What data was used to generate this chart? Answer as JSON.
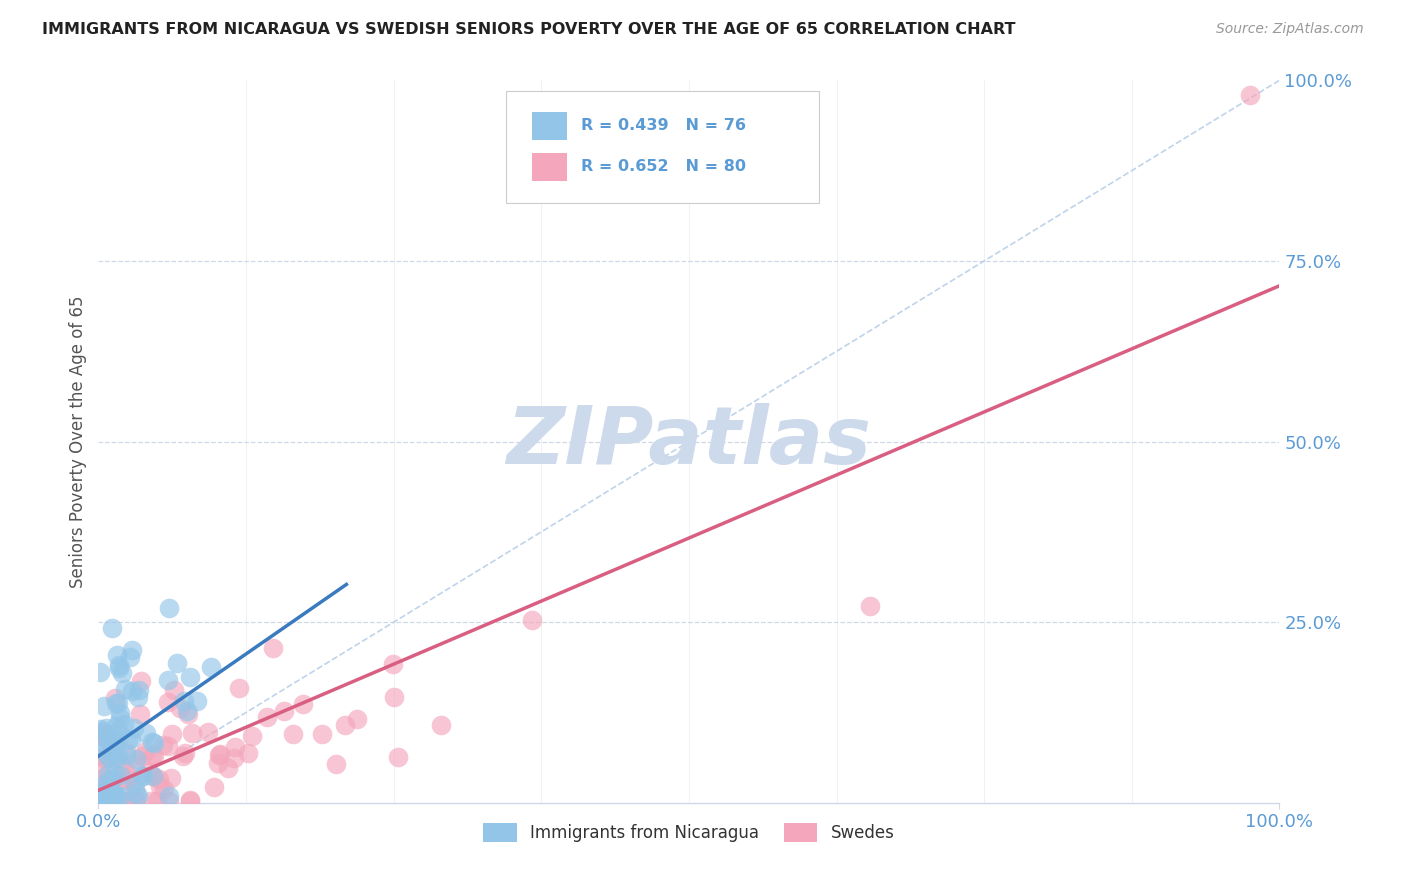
{
  "title": "IMMIGRANTS FROM NICARAGUA VS SWEDISH SENIORS POVERTY OVER THE AGE OF 65 CORRELATION CHART",
  "source": "Source: ZipAtlas.com",
  "ylabel": "Seniors Poverty Over the Age of 65",
  "legend_nicaragua": "Immigrants from Nicaragua",
  "legend_swedes": "Swedes",
  "r_nicaragua": 0.439,
  "n_nicaragua": 76,
  "r_swedes": 0.652,
  "n_swedes": 80,
  "color_nicaragua": "#92c5e8",
  "color_swedes": "#f4a7bc",
  "line_color_nicaragua": "#3a7bbf",
  "line_color_swedes": "#d95f82",
  "diagonal_color": "#b8cfe8",
  "background_color": "#ffffff",
  "grid_color": "#d0d8e8",
  "title_color": "#222222",
  "axis_label_color": "#5b9bd5",
  "legend_r_color": "#5b9bd5",
  "watermark": "ZIPatlas",
  "watermark_color": "#cddaeb",
  "figsize": [
    14.06,
    8.92
  ]
}
